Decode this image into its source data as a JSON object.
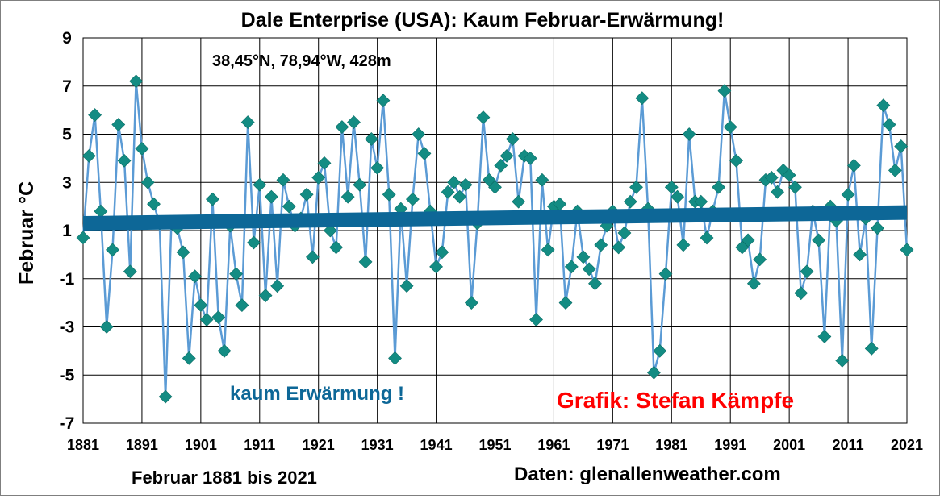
{
  "chart_data": {
    "type": "line",
    "title": "Dale Enterprise (USA): Kaum Februar-Erwärmung!",
    "subtitle": "38,45°N, 78,94°W, 428m",
    "ylabel": "Februar °C",
    "xlabel": "Februar 1881 bis 2021",
    "source": "Daten: glenallenweather.com",
    "credit": "Grafik: Stefan Kämpfe",
    "annotation": "kaum Erwärmung !",
    "xlim": [
      1881,
      2021
    ],
    "ylim": [
      -7,
      9
    ],
    "x_ticks": [
      1881,
      1891,
      1901,
      1911,
      1921,
      1931,
      1941,
      1951,
      1961,
      1971,
      1981,
      1991,
      2001,
      2011,
      2021
    ],
    "y_ticks": [
      -7,
      -5,
      -3,
      -1,
      1,
      3,
      5,
      7,
      9
    ],
    "grid": true,
    "series_color": "#5b9bd5",
    "marker_color": "#138c83",
    "trend_color": "#0d6797",
    "annotation_color": "#0d6797",
    "credit_color": "#ff0000",
    "x": [
      1881,
      1882,
      1883,
      1884,
      1885,
      1886,
      1887,
      1888,
      1889,
      1890,
      1891,
      1892,
      1893,
      1894,
      1895,
      1896,
      1897,
      1898,
      1899,
      1900,
      1901,
      1902,
      1903,
      1904,
      1905,
      1906,
      1907,
      1908,
      1909,
      1910,
      1911,
      1912,
      1913,
      1914,
      1915,
      1916,
      1917,
      1918,
      1919,
      1920,
      1921,
      1922,
      1923,
      1924,
      1925,
      1926,
      1927,
      1928,
      1929,
      1930,
      1931,
      1932,
      1933,
      1934,
      1935,
      1936,
      1937,
      1938,
      1939,
      1940,
      1941,
      1942,
      1943,
      1944,
      1945,
      1946,
      1947,
      1948,
      1949,
      1950,
      1951,
      1952,
      1953,
      1954,
      1955,
      1956,
      1957,
      1958,
      1959,
      1960,
      1961,
      1962,
      1963,
      1964,
      1965,
      1966,
      1967,
      1968,
      1969,
      1970,
      1971,
      1972,
      1973,
      1974,
      1975,
      1976,
      1977,
      1978,
      1979,
      1980,
      1981,
      1982,
      1983,
      1984,
      1985,
      1986,
      1987,
      1988,
      1989,
      1990,
      1991,
      1992,
      1993,
      1994,
      1995,
      1996,
      1997,
      1998,
      1999,
      2000,
      2001,
      2002,
      2003,
      2004,
      2005,
      2006,
      2007,
      2008,
      2009,
      2010,
      2011,
      2012,
      2013,
      2014,
      2015,
      2016,
      2017,
      2018,
      2019,
      2020,
      2021
    ],
    "values": [
      0.7,
      4.1,
      5.8,
      1.8,
      -3.0,
      0.2,
      5.4,
      3.9,
      -0.7,
      7.2,
      4.4,
      3.0,
      2.1,
      1.3,
      -5.9,
      1.3,
      1.1,
      0.1,
      -4.3,
      -0.9,
      -2.1,
      -2.7,
      2.3,
      -2.6,
      -4.0,
      1.2,
      -0.8,
      -2.1,
      5.5,
      0.5,
      2.9,
      -1.7,
      2.4,
      -1.3,
      3.1,
      2.0,
      1.2,
      1.5,
      2.5,
      -0.1,
      3.2,
      3.8,
      1.0,
      0.3,
      5.3,
      2.4,
      5.5,
      2.9,
      -0.3,
      4.8,
      3.6,
      6.4,
      2.5,
      -4.3,
      1.9,
      -1.3,
      2.3,
      5.0,
      4.2,
      1.8,
      -0.5,
      0.1,
      2.6,
      3.0,
      2.4,
      2.9,
      -2.0,
      1.3,
      5.7,
      3.1,
      2.8,
      3.7,
      4.1,
      4.8,
      2.2,
      4.1,
      4.0,
      -2.7,
      3.1,
      0.2,
      2.0,
      2.1,
      -2.0,
      -0.5,
      1.8,
      -0.1,
      -0.6,
      -1.2,
      0.4,
      1.2,
      1.8,
      0.3,
      0.9,
      2.2,
      2.8,
      6.5,
      1.9,
      -4.9,
      -4.0,
      -0.8,
      2.8,
      2.4,
      0.4,
      5.0,
      2.2,
      2.2,
      0.7,
      1.8,
      2.8,
      6.8,
      5.3,
      3.9,
      0.3,
      0.6,
      -1.2,
      -0.2,
      3.1,
      3.2,
      2.6,
      3.5,
      3.3,
      2.8,
      -1.6,
      -0.7,
      1.8,
      0.6,
      -3.4,
      2.0,
      1.4,
      -4.4,
      2.5,
      3.7,
      0.0,
      1.5,
      -3.9,
      1.1,
      6.2,
      5.4,
      3.5,
      4.5,
      0.2
    ],
    "trend": [
      [
        1881,
        1.3
      ],
      [
        2021,
        1.75
      ]
    ]
  }
}
